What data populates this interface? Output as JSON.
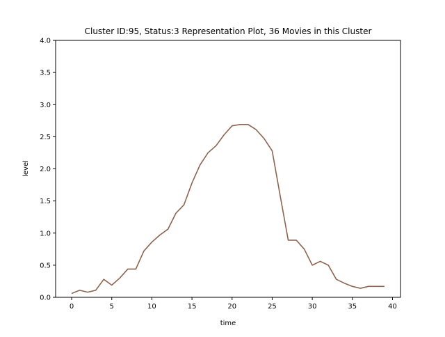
{
  "chart_data": {
    "type": "line",
    "title": "Cluster ID:95, Status:3 Representation Plot, 36 Movies in this Cluster",
    "xlabel": "time",
    "ylabel": "level",
    "xlim": [
      -2,
      41
    ],
    "ylim": [
      0,
      4
    ],
    "xticks": [
      0,
      5,
      10,
      15,
      20,
      25,
      30,
      35,
      40
    ],
    "xtick_labels": [
      "0",
      "5",
      "10",
      "15",
      "20",
      "25",
      "30",
      "35",
      "40"
    ],
    "yticks": [
      0,
      0.5,
      1,
      1.5,
      2,
      2.5,
      3,
      3.5,
      4
    ],
    "ytick_labels": [
      "0.0",
      "0.5",
      "1.0",
      "1.5",
      "2.0",
      "2.5",
      "3.0",
      "3.5",
      "4.0"
    ],
    "grid": false,
    "series": [
      {
        "color": "#8c6450",
        "x": [
          0,
          1,
          2,
          3,
          4,
          5,
          6,
          7,
          8,
          9,
          10,
          11,
          12,
          13,
          14,
          15,
          16,
          17,
          18,
          19,
          20,
          21,
          22,
          23,
          24,
          25,
          26,
          27,
          28,
          29,
          30,
          31,
          32,
          33,
          34,
          35,
          36,
          37,
          38,
          39
        ],
        "y": [
          0.06,
          0.11,
          0.08,
          0.11,
          0.28,
          0.19,
          0.3,
          0.44,
          0.44,
          0.72,
          0.86,
          0.97,
          1.06,
          1.31,
          1.44,
          1.78,
          2.06,
          2.25,
          2.36,
          2.53,
          2.67,
          2.69,
          2.69,
          2.61,
          2.47,
          2.28,
          1.58,
          0.89,
          0.89,
          0.75,
          0.5,
          0.56,
          0.5,
          0.28,
          0.22,
          0.17,
          0.14,
          0.17,
          0.17,
          0.17
        ]
      }
    ]
  }
}
